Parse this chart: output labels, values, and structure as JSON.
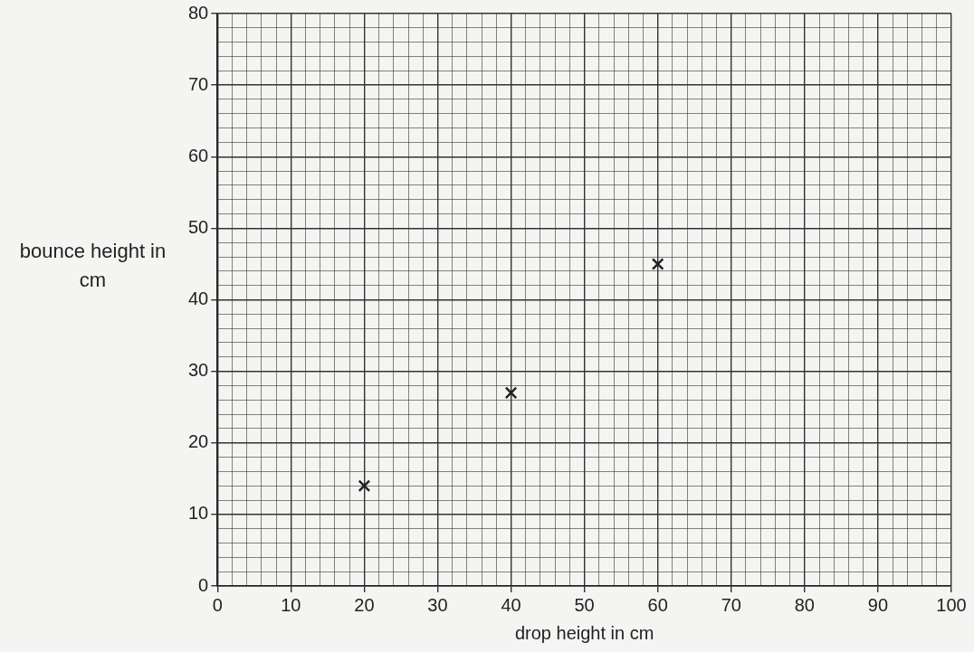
{
  "chart_data": {
    "type": "scatter",
    "xlabel": "drop height in cm",
    "ylabel": "bounce height in cm",
    "x": [
      20,
      40,
      60
    ],
    "values": [
      14,
      27,
      45
    ],
    "color": "#222222",
    "marker": "cross",
    "grid": true,
    "legend": false,
    "xlim": [
      0,
      100
    ],
    "ylim": [
      0,
      80
    ],
    "xticks": [
      0,
      {
        "value": 2,
        "label": null
      },
      {
        "value": 4,
        "label": null
      },
      {
        "value": 6,
        "label": null
      },
      {
        "value": 8,
        "label": null
      },
      10,
      {
        "value": 12,
        "label": null
      },
      {
        "value": 14,
        "label": null
      },
      {
        "value": 16,
        "label": null
      },
      {
        "value": 18,
        "label": null
      },
      20,
      {
        "value": 22,
        "label": null
      },
      {
        "value": 24,
        "label": null
      },
      {
        "value": 26,
        "label": null
      },
      {
        "value": 28,
        "label": null
      },
      30,
      {
        "value": 32,
        "label": null
      },
      {
        "value": 34,
        "label": null
      },
      {
        "value": 36,
        "label": null
      },
      {
        "value": 38,
        "label": null
      },
      40,
      {
        "value": 42,
        "label": null
      },
      {
        "value": 44,
        "label": null
      },
      {
        "value": 46,
        "label": null
      },
      {
        "value": 48,
        "label": null
      },
      50,
      {
        "value": 52,
        "label": null
      },
      {
        "value": 54,
        "label": null
      },
      {
        "value": 56,
        "label": null
      },
      {
        "value": 58,
        "label": null
      },
      60,
      {
        "value": 62,
        "label": null
      },
      {
        "value": 64,
        "label": null
      },
      {
        "value": 66,
        "label": null
      },
      {
        "value": 68,
        "label": null
      },
      70,
      {
        "value": 72,
        "label": null
      },
      {
        "value": 74,
        "label": null
      },
      {
        "value": 76,
        "label": null
      },
      {
        "value": 78,
        "label": null
      },
      80,
      {
        "value": 82,
        "label": null
      },
      {
        "value": 84,
        "label": null
      },
      {
        "value": 86,
        "label": null
      },
      {
        "value": 88,
        "label": null
      },
      90,
      {
        "value": 92,
        "label": null
      },
      {
        "value": 94,
        "label": null
      },
      {
        "value": 96,
        "label": null
      },
      {
        "value": 98,
        "label": null
      },
      100
    ],
    "yticks": [
      0,
      {
        "value": 2,
        "label": null
      },
      {
        "value": 4,
        "label": null
      },
      {
        "value": 6,
        "label": null
      },
      {
        "value": 8,
        "label": null
      },
      10,
      {
        "value": 12,
        "label": null
      },
      {
        "value": 14,
        "label": null
      },
      {
        "value": 16,
        "label": null
      },
      {
        "value": 18,
        "label": null
      },
      20,
      {
        "value": 22,
        "label": null
      },
      {
        "value": 24,
        "label": null
      },
      {
        "value": 26,
        "label": null
      },
      {
        "value": 28,
        "label": null
      },
      30,
      {
        "value": 32,
        "label": null
      },
      {
        "value": 34,
        "label": null
      },
      {
        "value": 36,
        "label": null
      },
      {
        "value": 38,
        "label": null
      },
      40,
      {
        "value": 42,
        "label": null
      },
      {
        "value": 44,
        "label": null
      },
      {
        "value": 46,
        "label": null
      },
      {
        "value": 48,
        "label": null
      },
      50,
      {
        "value": 52,
        "label": null
      },
      {
        "value": 54,
        "label": null
      },
      {
        "value": 56,
        "label": null
      },
      {
        "value": 58,
        "label": null
      },
      60,
      {
        "value": 62,
        "label": null
      },
      {
        "value": 64,
        "label": null
      },
      {
        "value": 66,
        "label": null
      },
      {
        "value": 68,
        "label": null
      },
      70,
      {
        "value": 72,
        "label": null
      },
      {
        "value": 74,
        "label": null
      },
      {
        "value": 76,
        "label": null
      },
      {
        "value": 78,
        "label": null
      },
      80
    ]
  }
}
